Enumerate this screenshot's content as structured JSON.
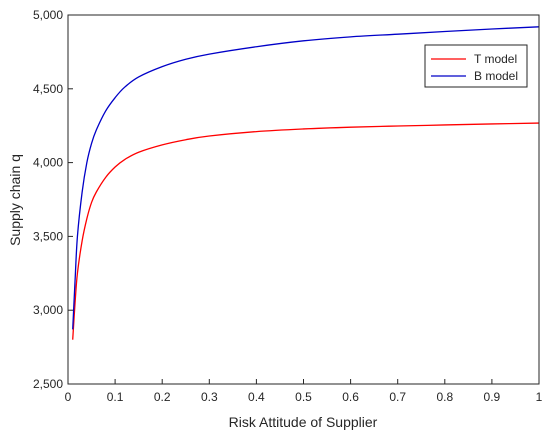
{
  "chart_data": {
    "type": "line",
    "title": "",
    "xlabel": "Risk Attitude of Supplier",
    "ylabel": "Supply chain q",
    "xlim": [
      0,
      1
    ],
    "ylim": [
      2500,
      5000
    ],
    "x_ticks": [
      0,
      0.1,
      0.2,
      0.3,
      0.4,
      0.5,
      0.6,
      0.7,
      0.8,
      0.9,
      1
    ],
    "x_tick_labels": [
      "0",
      "0.1",
      "0.2",
      "0.3",
      "0.4",
      "0.5",
      "0.6",
      "0.7",
      "0.8",
      "0.9",
      "1"
    ],
    "y_ticks": [
      2500,
      3000,
      3500,
      4000,
      4500,
      5000
    ],
    "y_tick_labels": [
      "2,500",
      "3,000",
      "3,500",
      "4,000",
      "4,500",
      "5,000"
    ],
    "grid": false,
    "legend": "top-right",
    "series": [
      {
        "name": "T model",
        "color": "#ff0000",
        "x": [
          0.01,
          0.015,
          0.02,
          0.03,
          0.04,
          0.05,
          0.06,
          0.08,
          0.1,
          0.12,
          0.15,
          0.2,
          0.25,
          0.3,
          0.4,
          0.5,
          0.6,
          0.7,
          0.8,
          0.9,
          1.0
        ],
        "y": [
          2800,
          3050,
          3250,
          3470,
          3620,
          3730,
          3800,
          3900,
          3970,
          4020,
          4070,
          4120,
          4155,
          4180,
          4210,
          4228,
          4240,
          4248,
          4255,
          4262,
          4268
        ]
      },
      {
        "name": "B model",
        "color": "#0000c8",
        "x": [
          0.01,
          0.015,
          0.02,
          0.03,
          0.04,
          0.05,
          0.06,
          0.08,
          0.1,
          0.12,
          0.15,
          0.2,
          0.25,
          0.3,
          0.4,
          0.5,
          0.6,
          0.7,
          0.8,
          0.9,
          1.0
        ],
        "y": [
          2870,
          3200,
          3500,
          3800,
          4000,
          4130,
          4220,
          4350,
          4440,
          4510,
          4580,
          4650,
          4700,
          4735,
          4785,
          4825,
          4852,
          4870,
          4888,
          4905,
          4920
        ]
      }
    ]
  }
}
